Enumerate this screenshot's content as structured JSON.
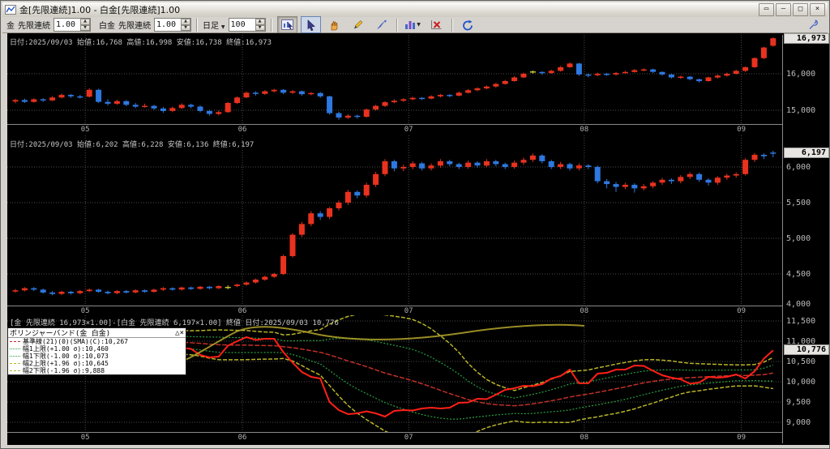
{
  "window": {
    "title": "金[先限連続]1.00 - 白金[先限連続]1.00",
    "buttons": [
      {
        "name": "float-window-button",
        "glyph": "▭"
      },
      {
        "name": "minimize-button",
        "glyph": "–"
      },
      {
        "name": "maximize-button",
        "glyph": "□"
      },
      {
        "name": "close-button",
        "glyph": "×"
      }
    ]
  },
  "toolbar": {
    "symbol1_label": "金",
    "contract1_label": "先限連続",
    "ratio1_value": "1.00",
    "symbol2_label": "白金",
    "contract2_label": "先限連続",
    "ratio2_value": "1.00",
    "period_label": "日足",
    "bars_value": "100",
    "icon_buttons": [
      "chart-mode-icon",
      "cursor-icon",
      "hand-icon",
      "pencil-icon",
      "draw-arrow-icon",
      "indicator-icon",
      "delete-indicator-icon",
      "refresh-icon",
      "wrench-icon"
    ]
  },
  "panels": {
    "x_axis": {
      "labels": [
        "05",
        "06",
        "07",
        "08",
        "09"
      ],
      "month_start_indices": [
        8,
        25,
        43,
        62,
        79
      ]
    },
    "gold": {
      "header": "日付:2025/09/03 始値:16,768 高値:16,998 安値:16,738 終値:16,973",
      "last_label": "16,973",
      "last_value": 16973,
      "ticks": [
        {
          "label": "16,000",
          "value": 16000
        },
        {
          "label": "15,000",
          "value": 15000
        }
      ]
    },
    "platinum": {
      "header": "日付:2025/09/03 始値:6,202 高値:6,228 安値:6,136 終値:6,197",
      "last_label": "6,197",
      "last_value": 6197,
      "ticks": [
        {
          "label": "6,000",
          "value": 6000
        },
        {
          "label": "5,500",
          "value": 5500
        },
        {
          "label": "5,000",
          "value": 5000
        },
        {
          "label": "4,500",
          "value": 4500
        },
        {
          "label": "4,000",
          "value": 4000
        }
      ]
    },
    "spread": {
      "header": "[金 先限連続 16,973×1.00]-[白金 先限連続 6,197×1.00] 終値 日付:2025/09/03 10,776",
      "last_label": "10,776",
      "last_value": 10776,
      "ticks": [
        {
          "label": "11,500",
          "value": 11500
        },
        {
          "label": "11,000",
          "value": 11000
        },
        {
          "label": "10,500",
          "value": 10500
        },
        {
          "label": "10,000",
          "value": 10000
        },
        {
          "label": "9,500",
          "value": 9500
        },
        {
          "label": "9,000",
          "value": 9000
        }
      ],
      "legend": {
        "title": "ボリンジャーバンド(金 白金)",
        "collapse_glyph": "△",
        "close_glyph": "×",
        "rows": [
          {
            "label": "基準線(21)(0)(SMA)(C):10,267",
            "color": "#cc2a2a",
            "style": "dashed"
          },
          {
            "label": "幅1上限(+1.00 σ):10,460",
            "color": "#28a040",
            "style": "dotted"
          },
          {
            "label": "幅1下限(-1.00 σ):10,073",
            "color": "#28a040",
            "style": "dotted"
          },
          {
            "label": "幅2上限(+1.96 σ):10,645",
            "color": "#b8b428",
            "style": "dashed"
          },
          {
            "label": "幅2下限(-1.96 σ):9,888",
            "color": "#b8b428",
            "style": "dashed"
          }
        ]
      }
    }
  },
  "colors": {
    "up": "#e8321f",
    "down": "#2e78e0",
    "doji": "#c8c832",
    "spread_line": "#ff2018",
    "sma": "#c03028",
    "band1": "#28a040",
    "band2": "#b8b428",
    "grid": "#4d4d4d",
    "axis_text": "#bcbcbc"
  },
  "chart_data": [
    {
      "type": "candlestick",
      "name": "金 先限連続 日足",
      "date": "2025/09/03",
      "open": 16768,
      "high": 16998,
      "low": 16738,
      "close": 16973,
      "ylim": [
        14600,
        17050
      ],
      "x_months": [
        "05",
        "06",
        "07",
        "08",
        "09"
      ],
      "ohlc": [
        [
          15240,
          15310,
          15190,
          15280
        ],
        [
          15280,
          15320,
          15200,
          15230
        ],
        [
          15230,
          15330,
          15210,
          15300
        ],
        [
          15300,
          15330,
          15230,
          15270
        ],
        [
          15270,
          15390,
          15250,
          15350
        ],
        [
          15350,
          15460,
          15330,
          15420
        ],
        [
          15420,
          15450,
          15340,
          15380
        ],
        [
          15380,
          15420,
          15320,
          15360
        ],
        [
          15370,
          15600,
          15350,
          15560
        ],
        [
          15560,
          15590,
          15200,
          15230
        ],
        [
          15230,
          15300,
          15130,
          15180
        ],
        [
          15180,
          15290,
          15150,
          15250
        ],
        [
          15250,
          15280,
          15110,
          15150
        ],
        [
          15150,
          15200,
          15060,
          15100
        ],
        [
          15100,
          15180,
          15070,
          15120
        ],
        [
          15120,
          15150,
          15010,
          15050
        ],
        [
          15050,
          15090,
          14930,
          14980
        ],
        [
          14980,
          15100,
          14950,
          15060
        ],
        [
          15060,
          15190,
          15030,
          15150
        ],
        [
          15150,
          15180,
          15050,
          15100
        ],
        [
          15100,
          15130,
          14940,
          14980
        ],
        [
          14980,
          15010,
          14850,
          14900
        ],
        [
          14900,
          14990,
          14860,
          14950
        ],
        [
          14950,
          15230,
          14930,
          15200
        ],
        [
          15200,
          15380,
          15170,
          15350
        ],
        [
          15350,
          15510,
          15330,
          15480
        ],
        [
          15480,
          15520,
          15400,
          15450
        ],
        [
          15450,
          15550,
          15420,
          15520
        ],
        [
          15520,
          15590,
          15490,
          15560
        ],
        [
          15560,
          15580,
          15440,
          15480
        ],
        [
          15480,
          15550,
          15450,
          15520
        ],
        [
          15520,
          15540,
          15400,
          15440
        ],
        [
          15440,
          15500,
          15410,
          15470
        ],
        [
          15470,
          15500,
          15340,
          15380
        ],
        [
          15380,
          15400,
          14880,
          14920
        ],
        [
          14920,
          14960,
          14740,
          14800
        ],
        [
          14800,
          14890,
          14760,
          14850
        ],
        [
          14850,
          14880,
          14770,
          14820
        ],
        [
          14820,
          15050,
          14800,
          15020
        ],
        [
          15020,
          15150,
          14990,
          15120
        ],
        [
          15120,
          15250,
          15090,
          15220
        ],
        [
          15220,
          15300,
          15190,
          15260
        ],
        [
          15260,
          15330,
          15230,
          15300
        ],
        [
          15300,
          15370,
          15270,
          15340
        ],
        [
          15340,
          15360,
          15280,
          15320
        ],
        [
          15320,
          15410,
          15300,
          15380
        ],
        [
          15380,
          15450,
          15350,
          15420
        ],
        [
          15420,
          15440,
          15360,
          15400
        ],
        [
          15400,
          15510,
          15380,
          15480
        ],
        [
          15480,
          15580,
          15460,
          15550
        ],
        [
          15550,
          15630,
          15520,
          15600
        ],
        [
          15600,
          15680,
          15570,
          15650
        ],
        [
          15650,
          15750,
          15620,
          15720
        ],
        [
          15720,
          15830,
          15700,
          15800
        ],
        [
          15800,
          15930,
          15780,
          15900
        ],
        [
          15900,
          16030,
          15880,
          16000
        ],
        [
          16050,
          16090,
          16000,
          16050
        ],
        [
          16050,
          16070,
          15970,
          16020
        ],
        [
          16020,
          16110,
          16000,
          16080
        ],
        [
          16080,
          16210,
          16060,
          16180
        ],
        [
          16180,
          16310,
          16160,
          16280
        ],
        [
          16280,
          16300,
          15940,
          15980
        ],
        [
          15980,
          16010,
          15900,
          15960
        ],
        [
          15960,
          16030,
          15930,
          16000
        ],
        [
          16000,
          16020,
          15940,
          15980
        ],
        [
          15980,
          16050,
          15950,
          16020
        ],
        [
          16020,
          16080,
          16000,
          16050
        ],
        [
          16050,
          16130,
          16030,
          16100
        ],
        [
          16100,
          16150,
          16070,
          16120
        ],
        [
          16120,
          16140,
          16020,
          16050
        ],
        [
          16050,
          16070,
          15950,
          15980
        ],
        [
          15980,
          16000,
          15870,
          15900
        ],
        [
          15900,
          15950,
          15860,
          15920
        ],
        [
          15920,
          15940,
          15820,
          15850
        ],
        [
          15850,
          15870,
          15760,
          15800
        ],
        [
          15800,
          15920,
          15780,
          15900
        ],
        [
          15900,
          15980,
          15870,
          15950
        ],
        [
          15950,
          16030,
          15920,
          16000
        ],
        [
          16000,
          16110,
          15980,
          16080
        ],
        [
          16080,
          16200,
          16050,
          16180
        ],
        [
          16180,
          16450,
          16160,
          16430
        ],
        [
          16430,
          16740,
          16400,
          16720
        ],
        [
          16768,
          16998,
          16738,
          16973
        ]
      ]
    },
    {
      "type": "candlestick",
      "name": "白金 先限連続 日足",
      "date": "2025/09/03",
      "open": 6202,
      "high": 6228,
      "low": 6136,
      "close": 6197,
      "ylim": [
        4000,
        6430
      ],
      "x_months": [
        "05",
        "06",
        "07",
        "08",
        "09"
      ],
      "ohlc": [
        [
          4260,
          4290,
          4240,
          4270
        ],
        [
          4270,
          4315,
          4255,
          4300
        ],
        [
          4300,
          4315,
          4260,
          4280
        ],
        [
          4280,
          4295,
          4225,
          4240
        ],
        [
          4240,
          4260,
          4200,
          4220
        ],
        [
          4220,
          4265,
          4205,
          4250
        ],
        [
          4250,
          4262,
          4210,
          4230
        ],
        [
          4230,
          4275,
          4215,
          4260
        ],
        [
          4260,
          4295,
          4245,
          4280
        ],
        [
          4280,
          4292,
          4235,
          4250
        ],
        [
          4250,
          4268,
          4212,
          4230
        ],
        [
          4230,
          4272,
          4215,
          4260
        ],
        [
          4260,
          4275,
          4225,
          4240
        ],
        [
          4240,
          4285,
          4228,
          4270
        ],
        [
          4270,
          4282,
          4235,
          4250
        ],
        [
          4250,
          4292,
          4238,
          4280
        ],
        [
          4280,
          4315,
          4262,
          4300
        ],
        [
          4300,
          4312,
          4265,
          4280
        ],
        [
          4280,
          4322,
          4268,
          4310
        ],
        [
          4310,
          4322,
          4275,
          4290
        ],
        [
          4290,
          4332,
          4278,
          4320
        ],
        [
          4320,
          4332,
          4285,
          4300
        ],
        [
          4300,
          4342,
          4288,
          4330
        ],
        [
          4310,
          4340,
          4285,
          4310
        ],
        [
          4330,
          4365,
          4315,
          4350
        ],
        [
          4350,
          4395,
          4335,
          4380
        ],
        [
          4380,
          4435,
          4365,
          4420
        ],
        [
          4420,
          4475,
          4405,
          4460
        ],
        [
          4460,
          4515,
          4445,
          4500
        ],
        [
          4500,
          4770,
          4485,
          4750
        ],
        [
          4750,
          5070,
          4730,
          5050
        ],
        [
          5050,
          5230,
          5020,
          5200
        ],
        [
          5200,
          5380,
          5170,
          5350
        ],
        [
          5350,
          5380,
          5260,
          5300
        ],
        [
          5300,
          5440,
          5270,
          5420
        ],
        [
          5420,
          5530,
          5390,
          5500
        ],
        [
          5500,
          5680,
          5470,
          5650
        ],
        [
          5650,
          5670,
          5560,
          5600
        ],
        [
          5600,
          5780,
          5570,
          5750
        ],
        [
          5750,
          5930,
          5720,
          5900
        ],
        [
          5900,
          6110,
          5870,
          6080
        ],
        [
          6080,
          6100,
          5940,
          5980
        ],
        [
          5980,
          6030,
          5940,
          6000
        ],
        [
          6000,
          6080,
          5970,
          6050
        ],
        [
          6050,
          6070,
          5950,
          5980
        ],
        [
          5980,
          6050,
          5950,
          6020
        ],
        [
          6020,
          6110,
          5990,
          6080
        ],
        [
          6080,
          6100,
          6010,
          6040
        ],
        [
          6040,
          6060,
          5970,
          6000
        ],
        [
          6000,
          6090,
          5975,
          6060
        ],
        [
          6060,
          6080,
          5990,
          6020
        ],
        [
          6020,
          6110,
          5995,
          6080
        ],
        [
          6080,
          6100,
          6010,
          6040
        ],
        [
          6040,
          6060,
          5970,
          6000
        ],
        [
          6000,
          6090,
          5975,
          6060
        ],
        [
          6060,
          6130,
          6030,
          6100
        ],
        [
          6100,
          6190,
          6070,
          6160
        ],
        [
          6160,
          6180,
          6050,
          6080
        ],
        [
          6080,
          6100,
          5970,
          6000
        ],
        [
          6000,
          6070,
          5970,
          6040
        ],
        [
          6040,
          6060,
          5950,
          5980
        ],
        [
          5980,
          6050,
          5950,
          6020
        ],
        [
          6020,
          6040,
          5970,
          6000
        ],
        [
          6000,
          6020,
          5770,
          5800
        ],
        [
          5800,
          5830,
          5700,
          5760
        ],
        [
          5760,
          5790,
          5650,
          5720
        ],
        [
          5720,
          5780,
          5690,
          5750
        ],
        [
          5750,
          5770,
          5640,
          5700
        ],
        [
          5700,
          5760,
          5670,
          5730
        ],
        [
          5730,
          5800,
          5700,
          5780
        ],
        [
          5780,
          5845,
          5750,
          5820
        ],
        [
          5820,
          5840,
          5760,
          5800
        ],
        [
          5800,
          5885,
          5770,
          5860
        ],
        [
          5860,
          5925,
          5830,
          5900
        ],
        [
          5900,
          5920,
          5790,
          5820
        ],
        [
          5820,
          5840,
          5740,
          5780
        ],
        [
          5780,
          5870,
          5750,
          5850
        ],
        [
          5850,
          5905,
          5820,
          5880
        ],
        [
          5880,
          5925,
          5850,
          5900
        ],
        [
          5900,
          6120,
          5880,
          6100
        ],
        [
          6100,
          6195,
          6070,
          6170
        ],
        [
          6170,
          6190,
          6110,
          6150
        ],
        [
          6202,
          6228,
          6136,
          6197
        ]
      ]
    },
    {
      "type": "line",
      "name": "ボリンジャーバンド(金 白金)",
      "formula": "spread = 金.close - 白金.close",
      "latest": 10776,
      "ylim": [
        8800,
        11540
      ],
      "sma": {
        "window": 21,
        "value": 10267
      },
      "bands": {
        "sigma1": {
          "multiplier": 1.0,
          "upper": 10460,
          "lower": 10073
        },
        "sigma2": {
          "multiplier": 1.96,
          "upper": 10645,
          "lower": 9888
        }
      }
    }
  ]
}
